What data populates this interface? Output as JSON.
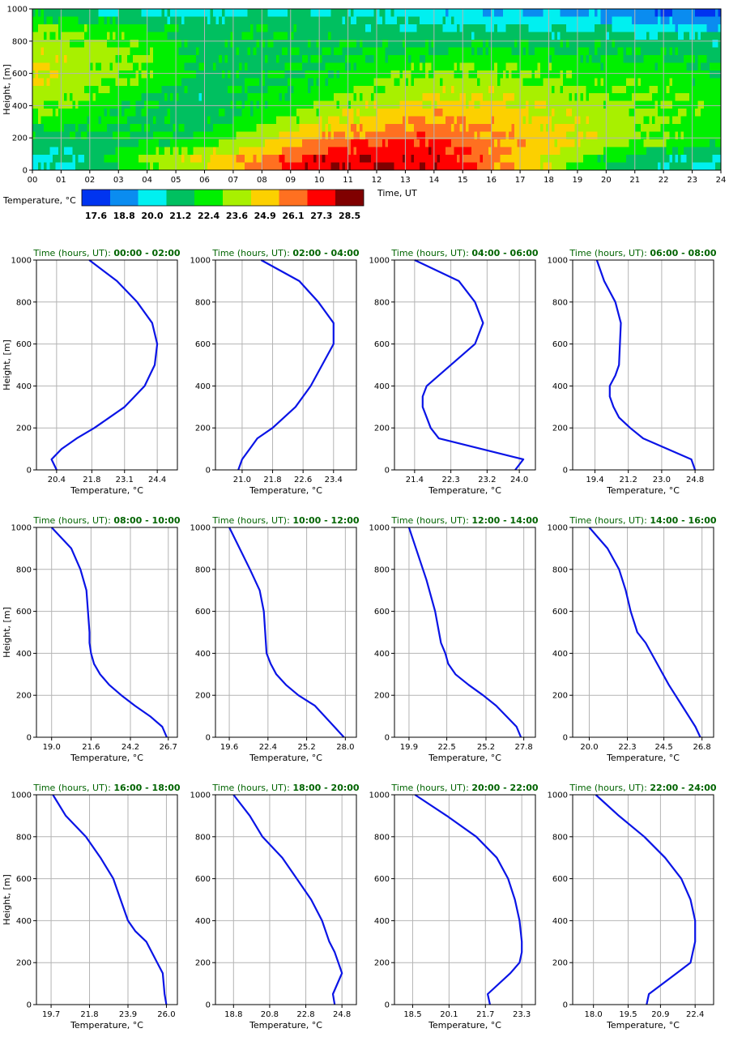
{
  "colors": {
    "line": "#0a14e6",
    "title": "#006400",
    "grid": "#b4b4b4",
    "colorbar": [
      "#0034f0",
      "#0a8cf0",
      "#00f0f0",
      "#00c060",
      "#00f000",
      "#a8f000",
      "#fcd000",
      "#ff7020",
      "#ff0000",
      "#800000"
    ]
  },
  "chart_data": [
    {
      "type": "heatmap",
      "xlabel": "Time, UT",
      "ylabel": "Height, [m]",
      "xlim": [
        0,
        24
      ],
      "ylim": [
        0,
        1000
      ],
      "x_ticks": [
        "00",
        "01",
        "02",
        "03",
        "04",
        "05",
        "06",
        "07",
        "08",
        "09",
        "10",
        "11",
        "12",
        "13",
        "14",
        "15",
        "16",
        "17",
        "18",
        "19",
        "20",
        "21",
        "22",
        "23",
        "24"
      ],
      "y_ticks": [
        "0",
        "200",
        "400",
        "600",
        "800",
        "1000"
      ],
      "colorbar_label": "Temperature, °C",
      "colorbar_ticks": [
        "17.6",
        "18.8",
        "20.0",
        "21.2",
        "22.4",
        "23.6",
        "24.9",
        "26.1",
        "27.3",
        "28.5"
      ],
      "grid": true,
      "heights": [
        1000,
        950,
        900,
        850,
        800,
        750,
        700,
        650,
        600,
        550,
        500,
        450,
        400,
        350,
        300,
        250,
        200,
        150,
        100,
        50,
        0
      ],
      "hours": [
        0,
        2,
        4,
        6,
        8,
        10,
        12,
        14,
        16,
        18,
        20,
        22,
        24
      ],
      "band_values": [
        [
          21.7,
          20.8,
          20.4,
          20.2,
          21.0,
          20.5,
          20.4,
          19.9,
          19.6,
          19.4,
          19.0,
          18.3,
          17.9
        ],
        [
          22.3,
          21.6,
          21.2,
          20.7,
          21.4,
          20.9,
          20.7,
          20.4,
          20.2,
          19.9,
          19.6,
          18.9,
          18.6
        ],
        [
          23.0,
          22.7,
          22.1,
          21.0,
          21.7,
          21.2,
          21.0,
          20.8,
          20.7,
          20.4,
          20.4,
          19.8,
          19.6
        ],
        [
          23.3,
          22.9,
          22.3,
          21.0,
          21.8,
          21.4,
          21.3,
          21.1,
          21.1,
          21.0,
          21.0,
          20.7,
          20.6
        ],
        [
          23.6,
          23.1,
          22.6,
          21.2,
          21.7,
          21.5,
          21.6,
          21.5,
          21.7,
          21.4,
          21.4,
          21.2,
          20.9
        ],
        [
          24.0,
          23.3,
          22.9,
          21.3,
          21.6,
          21.6,
          21.8,
          21.9,
          22.1,
          21.8,
          21.7,
          21.6,
          21.2
        ],
        [
          24.2,
          23.4,
          23.2,
          21.4,
          21.6,
          21.7,
          22.1,
          22.3,
          22.5,
          22.2,
          22.0,
          21.9,
          21.4
        ],
        [
          24.3,
          23.3,
          23.0,
          21.4,
          21.6,
          21.7,
          22.4,
          22.8,
          22.9,
          22.6,
          22.3,
          22.2,
          21.7
        ],
        [
          24.3,
          23.4,
          22.9,
          21.3,
          21.7,
          21.8,
          22.7,
          23.1,
          23.2,
          22.8,
          22.5,
          22.4,
          21.9
        ],
        [
          24.2,
          23.3,
          22.5,
          21.2,
          21.7,
          22.0,
          22.9,
          23.4,
          23.5,
          23.0,
          22.7,
          22.6,
          22.0
        ],
        [
          24.1,
          23.1,
          22.0,
          21.1,
          21.8,
          22.2,
          23.2,
          23.8,
          23.8,
          23.3,
          22.9,
          22.7,
          22.1
        ],
        [
          23.8,
          22.9,
          21.8,
          21.0,
          21.9,
          22.5,
          23.5,
          24.2,
          24.1,
          23.6,
          23.1,
          22.8,
          22.2
        ],
        [
          23.5,
          22.7,
          21.7,
          21.0,
          22.1,
          22.9,
          23.9,
          24.6,
          24.5,
          23.9,
          23.3,
          22.9,
          22.3
        ],
        [
          23.1,
          22.5,
          21.6,
          21.1,
          22.3,
          23.4,
          24.4,
          25.1,
          24.8,
          24.1,
          23.5,
          23.0,
          22.3
        ],
        [
          22.6,
          22.2,
          21.6,
          21.3,
          22.6,
          23.9,
          24.9,
          25.6,
          25.1,
          24.3,
          23.6,
          23.0,
          22.4
        ],
        [
          22.0,
          21.8,
          21.7,
          21.6,
          23.0,
          24.5,
          25.5,
          26.1,
          25.4,
          24.4,
          23.7,
          23.0,
          22.4
        ],
        [
          21.4,
          21.5,
          21.8,
          22.0,
          23.5,
          25.2,
          26.1,
          26.6,
          25.6,
          24.6,
          23.8,
          23.0,
          22.4
        ],
        [
          20.9,
          21.2,
          21.9,
          22.6,
          24.0,
          26.0,
          26.8,
          27.1,
          25.8,
          24.7,
          23.6,
          22.9,
          22.1
        ],
        [
          20.5,
          21.0,
          22.5,
          23.5,
          25.0,
          26.8,
          27.3,
          27.4,
          25.9,
          24.6,
          22.8,
          21.7,
          21.0
        ],
        [
          20.3,
          20.9,
          23.3,
          24.2,
          25.9,
          27.6,
          27.6,
          27.6,
          26.0,
          24.1,
          21.9,
          21.0,
          20.4
        ],
        [
          20.4,
          20.9,
          23.1,
          24.0,
          26.4,
          27.9,
          27.8,
          27.7,
          26.0,
          24.0,
          21.8,
          20.8,
          20.3
        ]
      ]
    },
    {
      "type": "line",
      "title_prefix": "Time (hours, UT):",
      "title_range": "00:00 - 02:00",
      "xlabel": "Temperature, °C",
      "ylabel": "Height, [m]",
      "xlim": [
        19.6,
        25.2
      ],
      "x_ticks": [
        20.4,
        21.8,
        23.1,
        24.4
      ],
      "x_tick_labels": [
        "20.4",
        "21.8",
        "23.1",
        "24.4"
      ],
      "ylim": [
        0,
        1000
      ],
      "y_ticks": [
        "0",
        "200",
        "400",
        "600",
        "800",
        "1000"
      ],
      "grid": true,
      "x": [
        20.4,
        20.2,
        20.6,
        21.2,
        21.9,
        22.5,
        23.1,
        23.5,
        23.9,
        24.1,
        24.3,
        24.4,
        24.3,
        24.2,
        23.6,
        22.8,
        21.7
      ],
      "y": [
        0,
        50,
        100,
        150,
        200,
        250,
        300,
        350,
        400,
        450,
        500,
        600,
        650,
        700,
        800,
        900,
        1000
      ]
    },
    {
      "type": "line",
      "title_prefix": "Time (hours, UT):",
      "title_range": "02:00 - 04:00",
      "xlabel": "Temperature, °C",
      "ylabel": "Height, [m]",
      "xlim": [
        20.3,
        24.0
      ],
      "x_ticks": [
        21.0,
        21.8,
        22.6,
        23.4
      ],
      "x_tick_labels": [
        "21.0",
        "21.8",
        "22.6",
        "23.4"
      ],
      "ylim": [
        0,
        1000
      ],
      "y_ticks": [
        "0",
        "200",
        "400",
        "600",
        "800",
        "1000"
      ],
      "grid": true,
      "x": [
        20.9,
        21.0,
        21.2,
        21.4,
        21.8,
        22.1,
        22.4,
        22.6,
        22.8,
        23.1,
        23.4,
        23.4,
        23.4,
        23.0,
        22.5,
        21.5
      ],
      "y": [
        0,
        50,
        100,
        150,
        200,
        250,
        300,
        350,
        400,
        500,
        600,
        650,
        700,
        800,
        900,
        1000
      ]
    },
    {
      "type": "line",
      "title_prefix": "Time (hours, UT):",
      "title_range": "04:00 - 06:00",
      "xlabel": "Temperature, °C",
      "ylabel": "Height, [m]",
      "xlim": [
        20.9,
        24.4
      ],
      "x_ticks": [
        21.4,
        22.3,
        23.2,
        24.0
      ],
      "x_tick_labels": [
        "21.4",
        "22.3",
        "23.2",
        "24.0"
      ],
      "ylim": [
        0,
        1000
      ],
      "y_ticks": [
        "0",
        "200",
        "400",
        "600",
        "800",
        "1000"
      ],
      "grid": true,
      "x": [
        23.9,
        24.1,
        22.0,
        21.8,
        21.7,
        21.6,
        21.6,
        21.7,
        22.0,
        22.9,
        23.1,
        22.9,
        22.5,
        21.4
      ],
      "y": [
        0,
        50,
        150,
        200,
        250,
        300,
        350,
        400,
        450,
        600,
        700,
        800,
        900,
        1000
      ]
    },
    {
      "type": "line",
      "title_prefix": "Time (hours, UT):",
      "title_range": "06:00 - 08:00",
      "xlabel": "Temperature, °C",
      "ylabel": "Height, [m]",
      "xlim": [
        18.2,
        25.8
      ],
      "x_ticks": [
        19.4,
        21.2,
        23.0,
        24.8
      ],
      "x_tick_labels": [
        "19.4",
        "21.2",
        "23.0",
        "24.8"
      ],
      "ylim": [
        0,
        1000
      ],
      "y_ticks": [
        "0",
        "200",
        "400",
        "600",
        "800",
        "1000"
      ],
      "grid": true,
      "x": [
        24.8,
        24.6,
        22.0,
        21.3,
        20.7,
        20.4,
        20.2,
        20.2,
        20.5,
        20.7,
        20.8,
        20.5,
        19.9,
        19.5
      ],
      "y": [
        0,
        50,
        150,
        200,
        250,
        300,
        350,
        400,
        450,
        500,
        700,
        800,
        900,
        1000
      ]
    },
    {
      "type": "line",
      "title_prefix": "Time (hours, UT):",
      "title_range": "08:00 - 10:00",
      "xlabel": "Temperature, °C",
      "ylabel": "Height, [m]",
      "xlim": [
        18.0,
        27.3
      ],
      "x_ticks": [
        19.0,
        21.6,
        24.2,
        26.7
      ],
      "x_tick_labels": [
        "19.0",
        "21.6",
        "24.2",
        "26.7"
      ],
      "ylim": [
        0,
        1000
      ],
      "y_ticks": [
        "0",
        "200",
        "400",
        "600",
        "800",
        "1000"
      ],
      "grid": true,
      "x": [
        26.6,
        26.3,
        25.5,
        24.5,
        23.6,
        22.8,
        22.2,
        21.8,
        21.6,
        21.5,
        21.5,
        21.4,
        21.3,
        20.9,
        20.3,
        19.0
      ],
      "y": [
        0,
        50,
        100,
        150,
        200,
        250,
        300,
        350,
        400,
        450,
        500,
        600,
        700,
        800,
        900,
        1000
      ]
    },
    {
      "type": "line",
      "title_prefix": "Time (hours, UT):",
      "title_range": "10:00 - 12:00",
      "xlabel": "Temperature, °C",
      "ylabel": "Height, [m]",
      "xlim": [
        18.6,
        28.8
      ],
      "x_ticks": [
        19.6,
        22.4,
        25.2,
        28.0
      ],
      "x_tick_labels": [
        "19.6",
        "22.4",
        "25.2",
        "28.0"
      ],
      "ylim": [
        0,
        1000
      ],
      "y_ticks": [
        "0",
        "200",
        "400",
        "600",
        "800",
        "1000"
      ],
      "grid": true,
      "x": [
        27.9,
        27.2,
        25.8,
        24.6,
        23.7,
        23.0,
        22.6,
        22.3,
        22.2,
        22.1,
        21.8,
        21.1,
        19.6
      ],
      "y": [
        0,
        50,
        150,
        200,
        250,
        300,
        350,
        400,
        500,
        600,
        700,
        800,
        1000
      ]
    },
    {
      "type": "line",
      "title_prefix": "Time (hours, UT):",
      "title_range": "12:00 - 14:00",
      "xlabel": "Temperature, °C",
      "ylabel": "Height, [m]",
      "xlim": [
        18.9,
        28.6
      ],
      "x_ticks": [
        19.9,
        22.5,
        25.2,
        27.8
      ],
      "x_tick_labels": [
        "19.9",
        "22.5",
        "25.2",
        "27.8"
      ],
      "ylim": [
        0,
        1000
      ],
      "y_ticks": [
        "0",
        "200",
        "400",
        "600",
        "800",
        "1000"
      ],
      "grid": true,
      "x": [
        27.6,
        27.3,
        25.9,
        25.0,
        24.0,
        23.1,
        22.6,
        22.4,
        22.1,
        21.7,
        21.1,
        19.9
      ],
      "y": [
        0,
        50,
        150,
        200,
        250,
        300,
        350,
        400,
        450,
        600,
        750,
        1000
      ]
    },
    {
      "type": "line",
      "title_prefix": "Time (hours, UT):",
      "title_range": "14:00 - 16:00",
      "xlabel": "Temperature, °C",
      "ylabel": "Height, [m]",
      "xlim": [
        19.0,
        27.5
      ],
      "x_ticks": [
        20.0,
        22.3,
        24.5,
        26.8
      ],
      "x_tick_labels": [
        "20.0",
        "22.3",
        "24.5",
        "26.8"
      ],
      "ylim": [
        0,
        1000
      ],
      "y_ticks": [
        "0",
        "200",
        "400",
        "600",
        "800",
        "1000"
      ],
      "grid": true,
      "x": [
        26.7,
        26.4,
        25.6,
        24.8,
        24.1,
        23.4,
        22.9,
        22.7,
        22.5,
        22.2,
        21.8,
        21.1,
        20.0
      ],
      "y": [
        0,
        50,
        150,
        250,
        350,
        450,
        500,
        550,
        600,
        700,
        800,
        900,
        1000
      ]
    },
    {
      "type": "line",
      "title_prefix": "Time (hours, UT):",
      "title_range": "16:00 - 18:00",
      "xlabel": "Temperature, °C",
      "ylabel": "Height, [m]",
      "xlim": [
        18.9,
        26.6
      ],
      "x_ticks": [
        19.7,
        21.8,
        23.9,
        26.0
      ],
      "x_tick_labels": [
        "19.7",
        "21.8",
        "23.9",
        "26.0"
      ],
      "ylim": [
        0,
        1000
      ],
      "y_ticks": [
        "0",
        "200",
        "400",
        "600",
        "800",
        "1000"
      ],
      "grid": true,
      "x": [
        26.0,
        25.9,
        25.8,
        25.5,
        24.9,
        24.3,
        23.9,
        23.5,
        23.1,
        22.4,
        21.6,
        20.5,
        19.8
      ],
      "y": [
        0,
        50,
        150,
        200,
        300,
        350,
        400,
        500,
        600,
        700,
        800,
        900,
        1000
      ]
    },
    {
      "type": "line",
      "title_prefix": "Time (hours, UT):",
      "title_range": "18:00 - 20:00",
      "xlabel": "Temperature, °C",
      "ylabel": "Height, [m]",
      "xlim": [
        17.8,
        25.6
      ],
      "x_ticks": [
        18.8,
        20.8,
        22.8,
        24.8
      ],
      "x_tick_labels": [
        "18.8",
        "20.8",
        "22.8",
        "24.8"
      ],
      "ylim": [
        0,
        1000
      ],
      "y_ticks": [
        "0",
        "200",
        "400",
        "600",
        "800",
        "1000"
      ],
      "grid": true,
      "x": [
        24.4,
        24.3,
        24.8,
        24.6,
        24.4,
        24.1,
        23.7,
        23.1,
        22.3,
        21.5,
        20.4,
        19.7,
        18.8
      ],
      "y": [
        0,
        50,
        150,
        200,
        250,
        300,
        400,
        500,
        600,
        700,
        800,
        900,
        1000
      ]
    },
    {
      "type": "line",
      "title_prefix": "Time (hours, UT):",
      "title_range": "20:00 - 22:00",
      "xlabel": "Temperature, °C",
      "ylabel": "Height, [m]",
      "xlim": [
        17.7,
        23.9
      ],
      "x_ticks": [
        18.5,
        20.1,
        21.7,
        23.3
      ],
      "x_tick_labels": [
        "18.5",
        "20.1",
        "21.7",
        "23.3"
      ],
      "ylim": [
        0,
        1000
      ],
      "y_ticks": [
        "0",
        "200",
        "400",
        "600",
        "800",
        "1000"
      ],
      "grid": true,
      "x": [
        21.9,
        21.8,
        22.8,
        23.2,
        23.3,
        23.3,
        23.2,
        23.0,
        22.7,
        22.2,
        21.3,
        20.0,
        18.6
      ],
      "y": [
        0,
        50,
        150,
        200,
        250,
        300,
        400,
        500,
        600,
        700,
        800,
        900,
        1000
      ]
    },
    {
      "type": "line",
      "title_prefix": "Time (hours, UT):",
      "title_range": "22:00 - 24:00",
      "xlabel": "Temperature, °C",
      "ylabel": "Height, [m]",
      "xlim": [
        17.1,
        23.2
      ],
      "x_ticks": [
        18.0,
        19.5,
        20.9,
        22.4
      ],
      "x_tick_labels": [
        "18.0",
        "19.5",
        "20.9",
        "22.4"
      ],
      "ylim": [
        0,
        1000
      ],
      "y_ticks": [
        "0",
        "200",
        "400",
        "600",
        "800",
        "1000"
      ],
      "grid": true,
      "x": [
        20.3,
        20.4,
        21.6,
        22.2,
        22.3,
        22.4,
        22.4,
        22.2,
        21.8,
        21.1,
        20.2,
        19.1,
        18.1
      ],
      "y": [
        0,
        50,
        150,
        200,
        250,
        300,
        400,
        500,
        600,
        700,
        800,
        900,
        1000
      ]
    }
  ]
}
